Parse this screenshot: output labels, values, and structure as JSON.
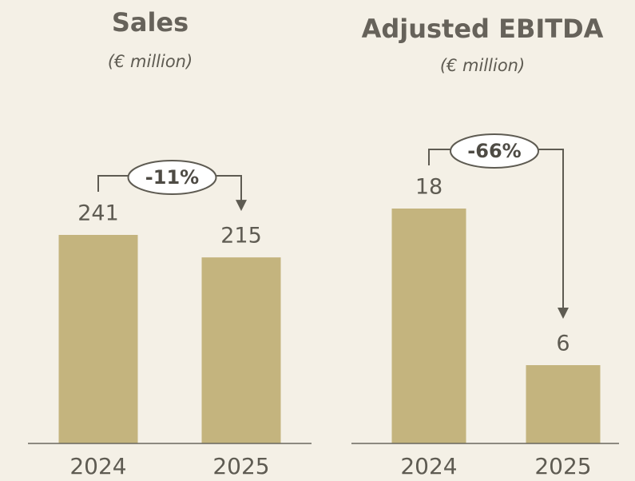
{
  "chart_data": [
    {
      "type": "bar",
      "title": "Sales",
      "subtitle": "(€ million)",
      "categories": [
        "2024",
        "2025"
      ],
      "values": [
        241,
        215
      ],
      "color": "#c4b47e",
      "annotation": "-11%"
    },
    {
      "type": "bar",
      "title": "Adjusted EBITDA",
      "subtitle": "(€ million)",
      "categories": [
        "2024",
        "2025"
      ],
      "values": [
        18,
        6
      ],
      "color": "#c4b47e",
      "annotation": "-66%"
    }
  ]
}
